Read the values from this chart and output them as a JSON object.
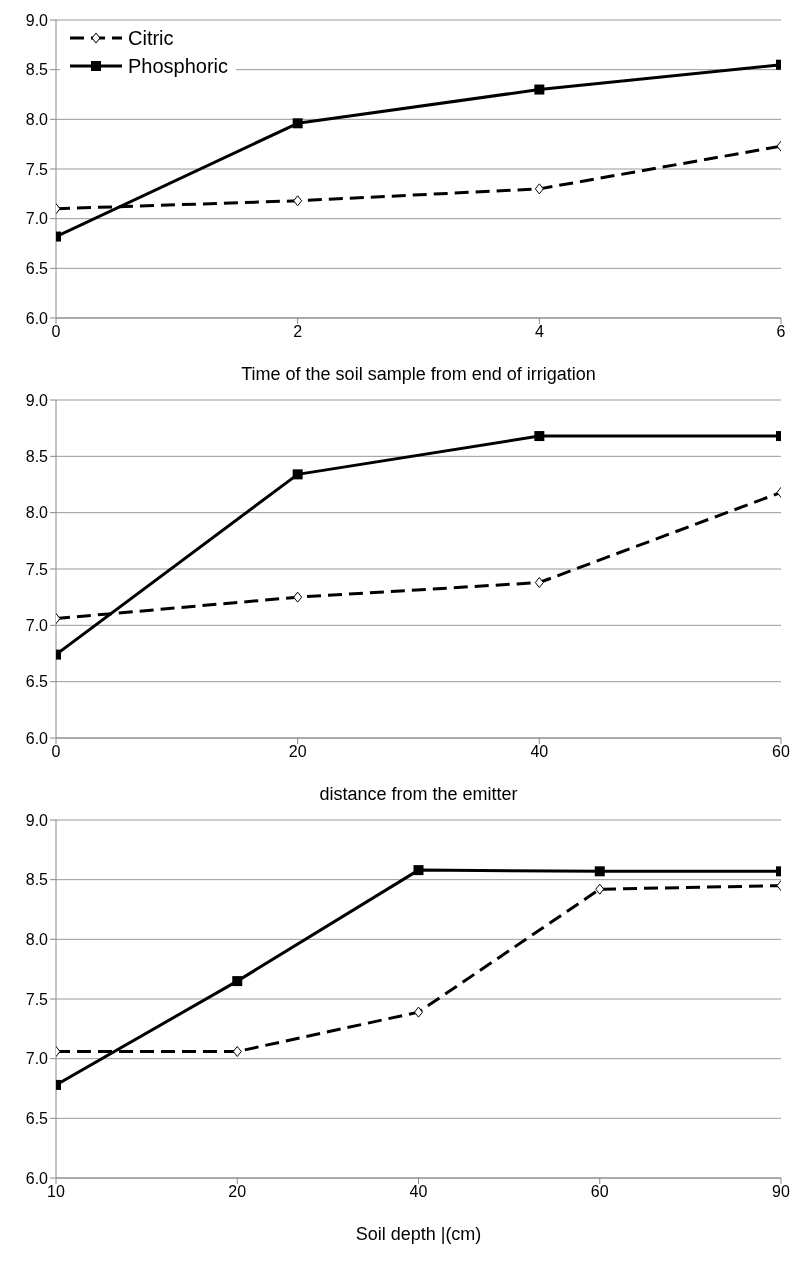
{
  "chart_data": [
    {
      "type": "line",
      "xlabel": "Time of the soil sample from end of irrigation",
      "x": [
        0,
        2,
        4,
        6
      ],
      "xlim": [
        0,
        6
      ],
      "xticks": [
        0,
        2,
        4,
        6
      ],
      "ylim": [
        6.0,
        9.0
      ],
      "yticks": [
        {
          "value": 6,
          "label": "6.0"
        },
        {
          "value": 6.5,
          "label": "6.5"
        },
        {
          "value": 7,
          "label": "7.0"
        },
        {
          "value": 7.5,
          "label": "7.5"
        },
        {
          "value": 8,
          "label": "8.0"
        },
        {
          "value": 8.5,
          "label": "8.5"
        },
        {
          "value": 9,
          "label": "9.0"
        }
      ],
      "grid": "y",
      "legend": "top left",
      "series": [
        {
          "name": "Citric",
          "color": "#000000",
          "values": [
            7.1,
            7.18,
            7.3,
            7.73
          ],
          "marker": "diamond",
          "line_style": "dashed"
        },
        {
          "name": "Phosphoric",
          "color": "#000000",
          "values": [
            6.82,
            7.96,
            8.3,
            8.55
          ],
          "marker": "square",
          "line_style": "solid"
        }
      ]
    },
    {
      "type": "line",
      "xlabel": "distance from the emitter",
      "x": [
        0,
        20,
        40,
        60
      ],
      "xlim": [
        0,
        60
      ],
      "xticks": [
        0,
        20,
        40,
        60
      ],
      "ylim": [
        6.0,
        9.0
      ],
      "yticks": [
        {
          "value": 6,
          "label": "6.0"
        },
        {
          "value": 6.5,
          "label": "6.5"
        },
        {
          "value": 7,
          "label": "7.0"
        },
        {
          "value": 7.5,
          "label": "7.5"
        },
        {
          "value": 8,
          "label": "8.0"
        },
        {
          "value": 8.5,
          "label": "8.5"
        },
        {
          "value": 9,
          "label": "9.0"
        }
      ],
      "grid": "y",
      "series": [
        {
          "color": "#000000",
          "values": [
            7.06,
            7.25,
            7.38,
            8.18
          ],
          "marker": "diamond",
          "line_style": "dashed"
        },
        {
          "color": "#000000",
          "values": [
            6.74,
            8.34,
            8.68,
            8.68
          ],
          "marker": "square",
          "line_style": "solid"
        }
      ]
    },
    {
      "type": "line",
      "xlabel": "Soil depth |(cm)",
      "categories": [
        "10",
        "20",
        "40",
        "60",
        "90"
      ],
      "ylim": [
        6.0,
        9.0
      ],
      "yticks": [
        {
          "value": 6,
          "label": "6.0"
        },
        {
          "value": 6.5,
          "label": "6.5"
        },
        {
          "value": 7,
          "label": "7.0"
        },
        {
          "value": 7.5,
          "label": "7.5"
        },
        {
          "value": 8,
          "label": "8.0"
        },
        {
          "value": 8.5,
          "label": "8.5"
        },
        {
          "value": 9,
          "label": "9.0"
        }
      ],
      "grid": "y",
      "series": [
        {
          "color": "#000000",
          "values": [
            7.06,
            7.06,
            7.39,
            8.42,
            8.45
          ],
          "marker": "diamond",
          "line_style": "dashed"
        },
        {
          "color": "#000000",
          "values": [
            6.78,
            7.65,
            8.58,
            8.57,
            8.57
          ],
          "marker": "square",
          "line_style": "solid"
        }
      ]
    }
  ]
}
